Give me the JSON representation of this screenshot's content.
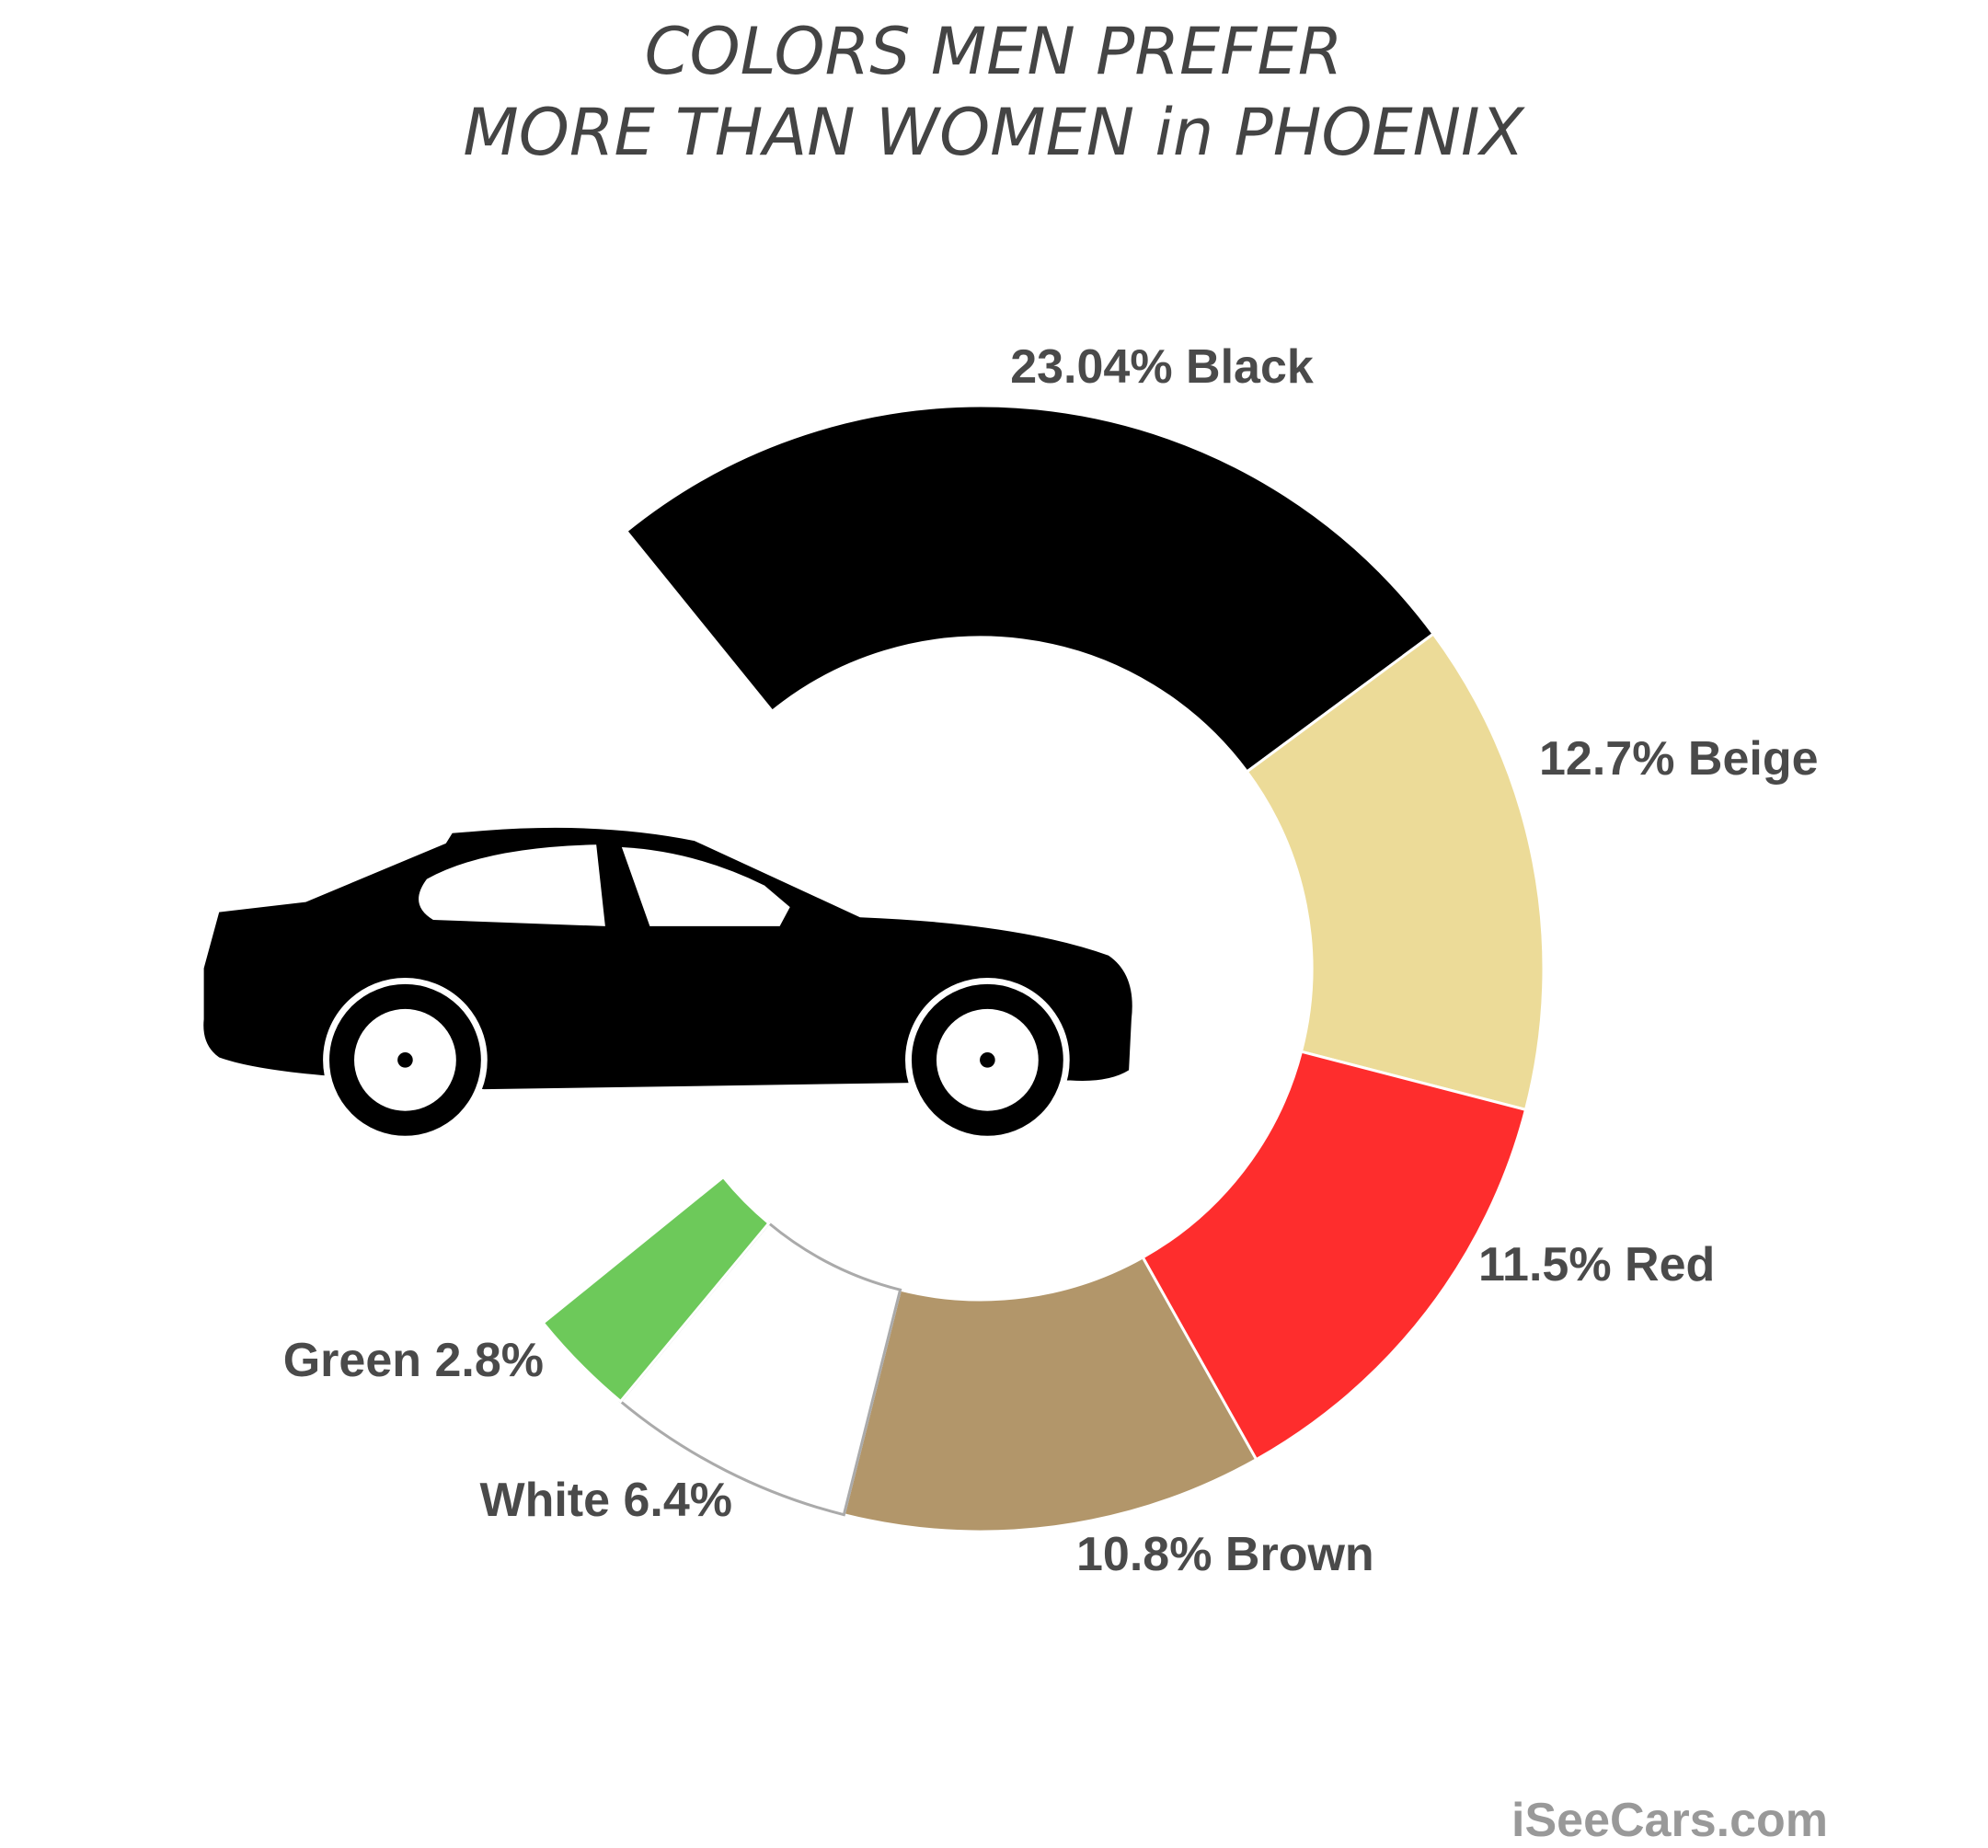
{
  "chart_data": {
    "type": "donut",
    "title": [
      "COLORS MEN PREFER",
      "MORE THAN WOMEN in PHOENIX"
    ],
    "categories": [
      "Black",
      "Beige",
      "Red",
      "Brown",
      "White",
      "Green"
    ],
    "values": [
      23.04,
      12.7,
      11.5,
      10.8,
      6.4,
      2.8
    ],
    "value_labels": [
      "23.04%",
      "12.7%",
      "11.5%",
      "10.8%",
      "6.4%",
      "2.8%"
    ],
    "colors": [
      "#000000",
      "#ecdb98",
      "#fe2d2d",
      "#b2966a",
      "#ffffff",
      "#6dc95a"
    ],
    "source": "iSeeCars.com"
  }
}
